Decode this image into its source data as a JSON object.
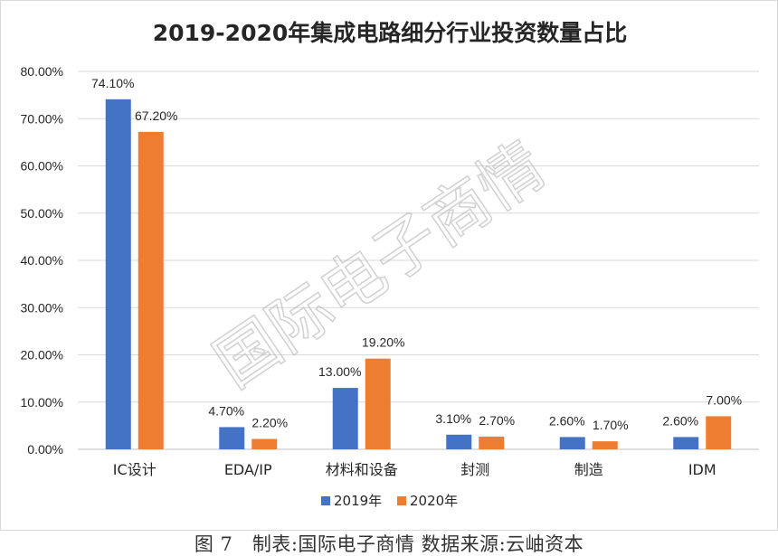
{
  "chart_data": {
    "type": "bar",
    "title": "2019-2020年集成电路细分行业投资数量占比",
    "xlabel": "",
    "ylabel": "",
    "ylim": [
      0,
      80
    ],
    "yticks": [
      0,
      10,
      20,
      30,
      40,
      50,
      60,
      70,
      80
    ],
    "ytick_labels": [
      "0.00%",
      "10.00%",
      "20.00%",
      "30.00%",
      "40.00%",
      "50.00%",
      "60.00%",
      "70.00%",
      "80.00%"
    ],
    "grid": true,
    "legend_position": "bottom",
    "categories": [
      "IC设计",
      "EDA/IP",
      "材料和设备",
      "封测",
      "制造",
      "IDM"
    ],
    "series": [
      {
        "name": "2019年",
        "color": "#4472c4",
        "values": [
          74.1,
          4.7,
          13.0,
          3.1,
          2.6,
          2.6
        ],
        "labels": [
          "74.10%",
          "4.70%",
          "13.00%",
          "3.10%",
          "2.60%",
          "2.60%"
        ]
      },
      {
        "name": "2020年",
        "color": "#ed7d31",
        "values": [
          67.2,
          2.2,
          19.2,
          2.7,
          1.7,
          7.0
        ],
        "labels": [
          "67.20%",
          "2.20%",
          "19.20%",
          "2.70%",
          "1.70%",
          "7.00%"
        ]
      }
    ]
  },
  "watermark": "国际电子商情",
  "caption": "图 7　制表:国际电子商情  数据来源:云岫资本"
}
